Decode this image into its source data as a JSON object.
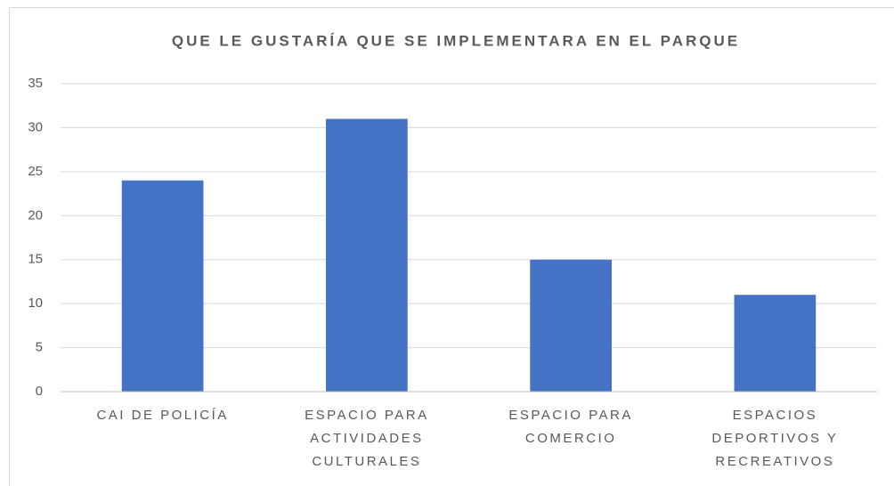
{
  "chart_data": {
    "type": "bar",
    "title": "QUE LE GUSTARÍA QUE SE IMPLEMENTARA EN EL PARQUE",
    "categories": [
      "CAI DE POLICÍA",
      "ESPACIO PARA ACTIVIDADES CULTURALES",
      "ESPACIO PARA COMERCIO",
      "ESPACIOS DEPORTIVOS Y RECREATIVOS"
    ],
    "values": [
      24,
      31,
      15,
      11
    ],
    "color": "#4472c4",
    "ylim": [
      0,
      35
    ],
    "yticks": [
      0,
      5,
      10,
      15,
      20,
      25,
      30,
      35
    ],
    "grid": true
  }
}
